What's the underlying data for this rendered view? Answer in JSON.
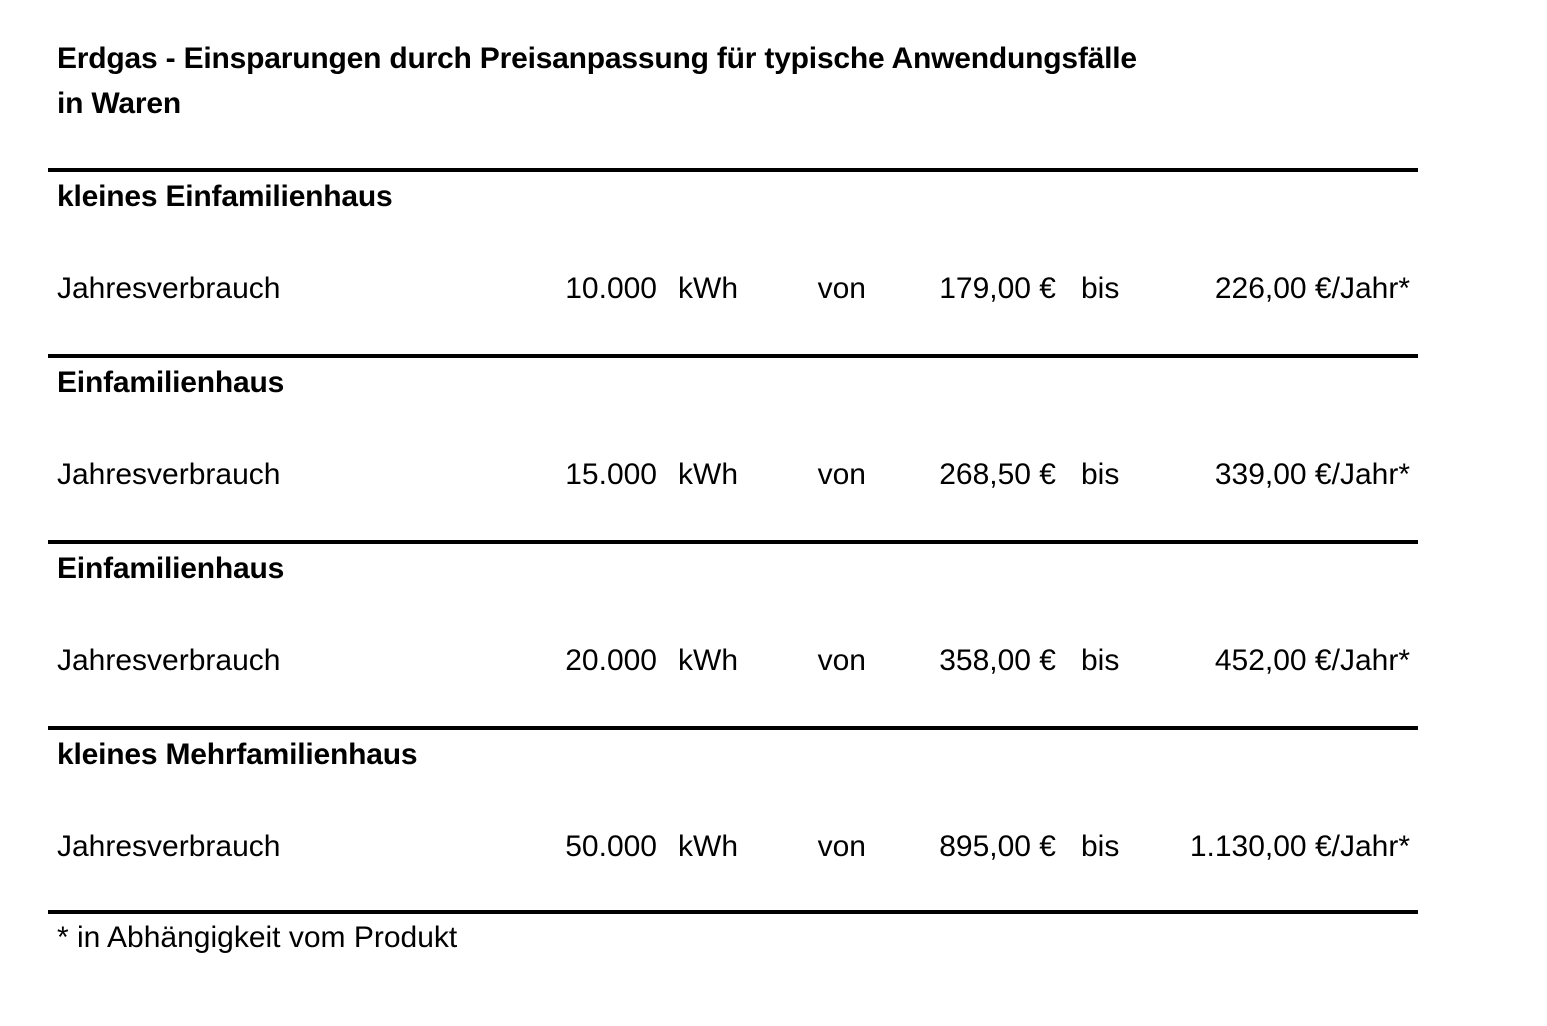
{
  "title": {
    "line1": "Erdgas - Einsparungen durch Preisanpassung für typische Anwendungsfälle",
    "line2": "in Waren"
  },
  "table": {
    "sections": [
      {
        "header": "kleines Einfamilienhaus",
        "row": {
          "label": "Jahresverbrauch",
          "consumption": "10.000",
          "unit": "kWh",
          "from_word": "von",
          "from_value": "179,00 €",
          "to_word": "bis",
          "to_value": "226,00 €/Jahr*"
        }
      },
      {
        "header": "Einfamilienhaus",
        "row": {
          "label": "Jahresverbrauch",
          "consumption": "15.000",
          "unit": "kWh",
          "from_word": "von",
          "from_value": "268,50 €",
          "to_word": "bis",
          "to_value": "339,00 €/Jahr*"
        }
      },
      {
        "header": "Einfamilienhaus",
        "row": {
          "label": "Jahresverbrauch",
          "consumption": "20.000",
          "unit": "kWh",
          "from_word": "von",
          "from_value": "358,00 €",
          "to_word": "bis",
          "to_value": "452,00 €/Jahr*"
        }
      },
      {
        "header": "kleines Mehrfamilienhaus",
        "row": {
          "label": "Jahresverbrauch",
          "consumption": "50.000",
          "unit": "kWh",
          "from_word": "von",
          "from_value": "895,00 €",
          "to_word": "bis",
          "to_value": "1.130,00 €/Jahr*"
        }
      }
    ],
    "footnote": "* in Abhängigkeit vom Produkt"
  },
  "colors": {
    "text": "#000000",
    "background": "#ffffff",
    "rule": "#000000"
  }
}
